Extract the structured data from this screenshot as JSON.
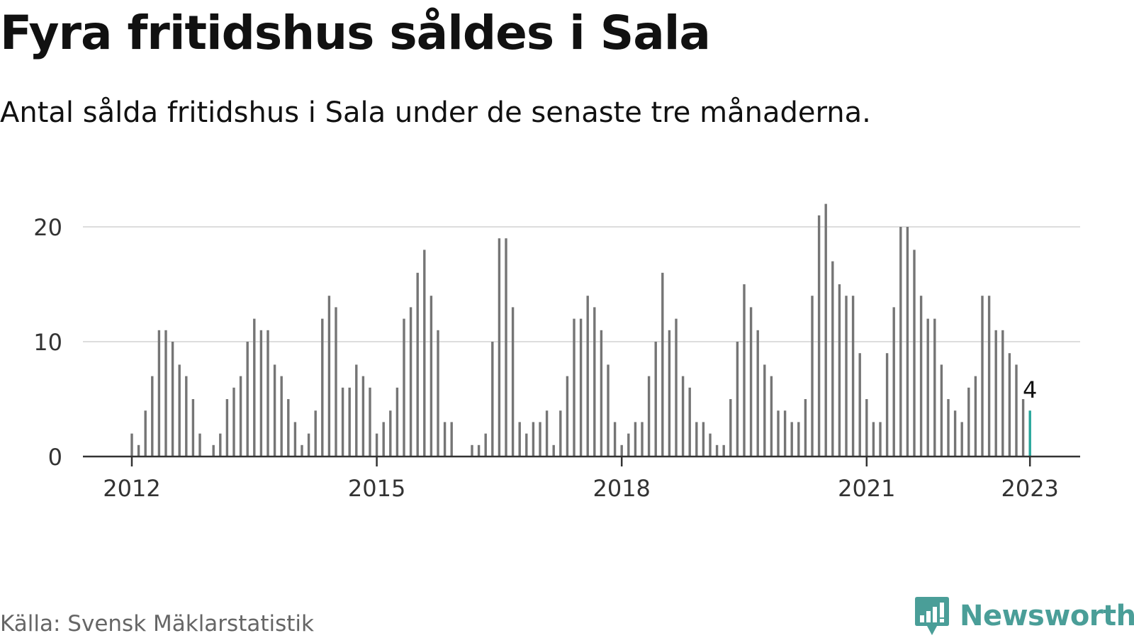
{
  "title": "Fyra fritidshus såldes i Sala",
  "subtitle": "Antal sålda fritidshus i Sala under de senaste tre månaderna.",
  "source": "Källa: Svensk Mäklarstatistik",
  "brand": {
    "name": "Newsworthy",
    "logo_icon": "bar-chart-speech-bubble-icon",
    "color": "#4a9e98"
  },
  "chart_data": {
    "type": "bar",
    "title": "Fyra fritidshus såldes i Sala",
    "subtitle": "Antal sålda fritidshus i Sala under de senaste tre månaderna.",
    "x_start": "2012-01",
    "x_ticks": [
      "2012",
      "2015",
      "2018",
      "2021",
      "2023"
    ],
    "y_ticks": [
      "0",
      "10",
      "20"
    ],
    "ylim": [
      0,
      22
    ],
    "grid": true,
    "bar_color": "#757575",
    "highlight_color": "#26a69a",
    "highlight_label": "4",
    "values": [
      2,
      1,
      4,
      7,
      11,
      11,
      10,
      8,
      7,
      5,
      2,
      0,
      1,
      2,
      5,
      6,
      7,
      10,
      12,
      11,
      11,
      8,
      7,
      5,
      3,
      1,
      2,
      4,
      12,
      14,
      13,
      6,
      6,
      8,
      7,
      6,
      2,
      3,
      4,
      6,
      12,
      13,
      16,
      18,
      14,
      11,
      3,
      3,
      0,
      0,
      1,
      1,
      2,
      10,
      19,
      19,
      13,
      3,
      2,
      3,
      3,
      4,
      1,
      4,
      7,
      12,
      12,
      14,
      13,
      11,
      8,
      3,
      1,
      2,
      3,
      3,
      7,
      10,
      16,
      11,
      12,
      7,
      6,
      3,
      3,
      2,
      1,
      1,
      5,
      10,
      15,
      13,
      11,
      8,
      7,
      4,
      4,
      3,
      3,
      5,
      14,
      21,
      22,
      17,
      15,
      14,
      14,
      9,
      5,
      3,
      3,
      9,
      13,
      20,
      20,
      18,
      14,
      12,
      12,
      8,
      5,
      4,
      3,
      6,
      7,
      14,
      14,
      11,
      11,
      9,
      8,
      5,
      4
    ]
  }
}
